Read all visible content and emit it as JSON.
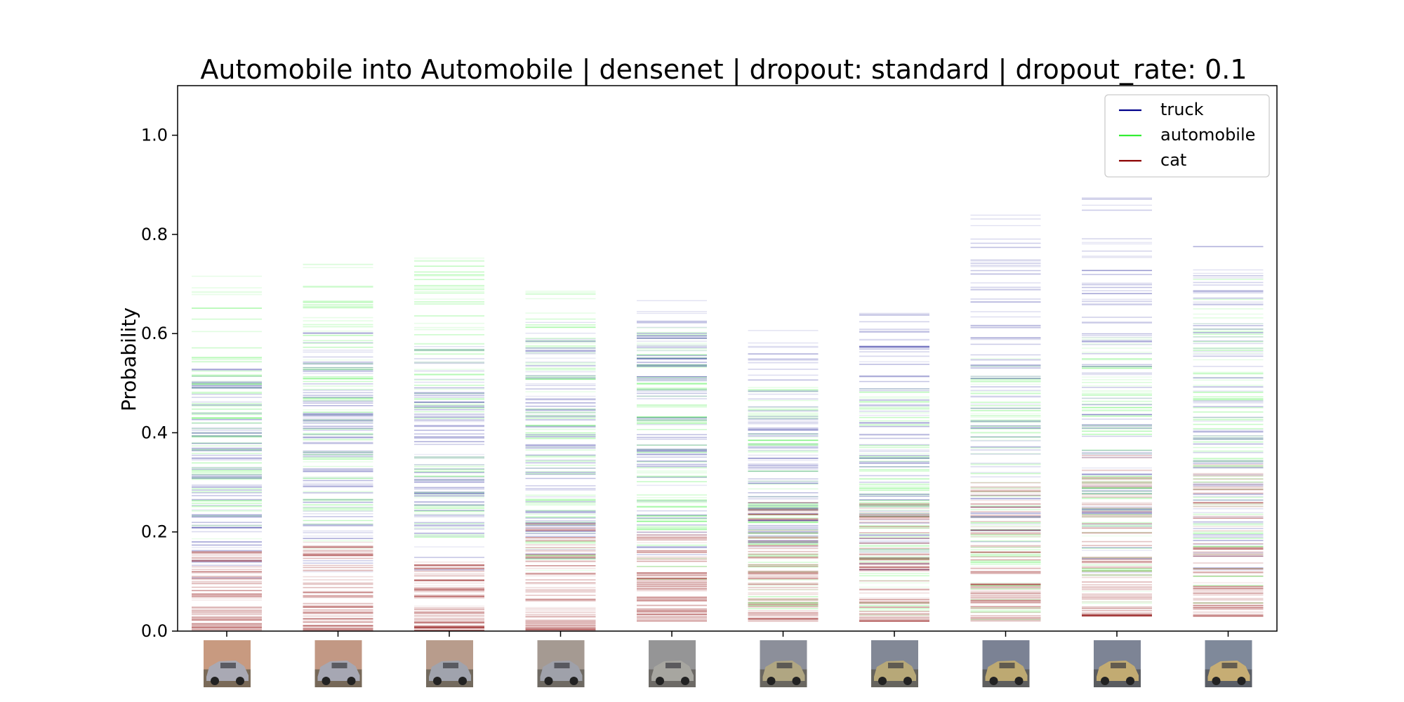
{
  "chart_data": {
    "type": "scatter",
    "title": "Automobile into Automobile | densenet | dropout: standard | dropout_rate: 0.1",
    "xlabel": "",
    "ylabel": "Probability",
    "ylim": [
      0,
      1.1
    ],
    "yticks": [
      0.0,
      0.2,
      0.4,
      0.6,
      0.8,
      1.0
    ],
    "ytick_labels": [
      "0.0",
      "0.2",
      "0.4",
      "0.6",
      "0.8",
      "1.0"
    ],
    "legend_position": "top-right",
    "grid": false,
    "series": [
      {
        "name": "truck",
        "color": "#00008b",
        "ranges": [
          [
            0.08,
            0.54
          ],
          [
            0.1,
            0.62
          ],
          [
            0.12,
            0.58
          ],
          [
            0.12,
            0.63
          ],
          [
            0.12,
            0.67
          ],
          [
            0.12,
            0.61
          ],
          [
            0.1,
            0.66
          ],
          [
            0.12,
            0.85
          ],
          [
            0.1,
            0.89
          ],
          [
            0.1,
            0.78
          ]
        ]
      },
      {
        "name": "automobile",
        "color": "#33ee33",
        "ranges": [
          [
            0.15,
            0.72
          ],
          [
            0.15,
            0.74
          ],
          [
            0.15,
            0.76
          ],
          [
            0.1,
            0.69
          ],
          [
            0.1,
            0.62
          ],
          [
            0.02,
            0.5
          ],
          [
            0.01,
            0.5
          ],
          [
            0.01,
            0.55
          ],
          [
            0.02,
            0.6
          ],
          [
            0.02,
            0.73
          ]
        ]
      },
      {
        "name": "cat",
        "color": "#8b0000",
        "ranges": [
          [
            0.0,
            0.17
          ],
          [
            0.0,
            0.18
          ],
          [
            0.0,
            0.14
          ],
          [
            0.0,
            0.22
          ],
          [
            0.02,
            0.2
          ],
          [
            0.02,
            0.26
          ],
          [
            0.02,
            0.26
          ],
          [
            0.02,
            0.3
          ],
          [
            0.03,
            0.36
          ],
          [
            0.03,
            0.34
          ]
        ]
      }
    ],
    "thumbnails": [
      {
        "sky": "#c89a80",
        "body": "#a9a9b4",
        "tint": "#7a6a58"
      },
      {
        "sky": "#c29884",
        "body": "#a6a7b3",
        "tint": "#766858"
      },
      {
        "sky": "#b89c8c",
        "body": "#a0a3ad",
        "tint": "#736a5e"
      },
      {
        "sky": "#a59a92",
        "body": "#9fa1aa",
        "tint": "#6f6a63"
      },
      {
        "sky": "#959596",
        "body": "#a7a6a0",
        "tint": "#6d6a66"
      },
      {
        "sky": "#8c8f9a",
        "body": "#b0a682",
        "tint": "#6a6760"
      },
      {
        "sky": "#828896",
        "body": "#b7a878",
        "tint": "#66645e"
      },
      {
        "sky": "#7b8294",
        "body": "#bda972",
        "tint": "#5e5e5e"
      },
      {
        "sky": "#7d8495",
        "body": "#c2ab72",
        "tint": "#5a5c60"
      },
      {
        "sky": "#7f899a",
        "body": "#c6ad74",
        "tint": "#5a5e66"
      }
    ]
  }
}
